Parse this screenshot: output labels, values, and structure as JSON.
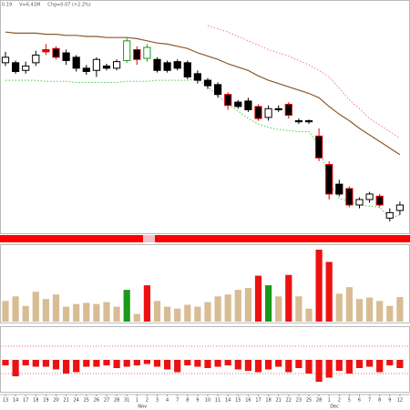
{
  "chart_data": [
    {
      "type": "candlestick",
      "header": [
        "0.19",
        "V=6.41M",
        "Chg=0.07 (+2.2%)"
      ],
      "x": [
        "13",
        "14",
        "17",
        "18",
        "19",
        "20",
        "21",
        "24",
        "25",
        "26",
        "27",
        "28",
        "31",
        "1",
        "2",
        "3",
        "4",
        "7",
        "8",
        "9",
        "10",
        "11",
        "14",
        "15",
        "16",
        "17",
        "18",
        "21",
        "22",
        "23",
        "25",
        "28",
        "1",
        "2",
        "5",
        "6",
        "7",
        "8",
        "9",
        "12"
      ],
      "months": [
        null,
        null,
        null,
        null,
        null,
        null,
        null,
        null,
        null,
        null,
        null,
        null,
        null,
        "Nov",
        null,
        null,
        null,
        null,
        null,
        null,
        null,
        null,
        null,
        null,
        null,
        null,
        null,
        null,
        null,
        null,
        null,
        null,
        "Dec",
        null,
        null,
        null,
        null,
        null,
        null,
        null
      ],
      "open": [
        4.35,
        4.35,
        4.28,
        4.35,
        4.45,
        4.48,
        4.44,
        4.4,
        4.3,
        4.28,
        4.32,
        4.3,
        4.37,
        4.47,
        4.39,
        4.38,
        4.35,
        4.36,
        4.35,
        4.25,
        4.19,
        4.15,
        4.06,
        3.99,
        4.0,
        3.95,
        3.85,
        3.93,
        3.97,
        3.82,
        3.82,
        3.68,
        3.42,
        3.24,
        3.2,
        3.05,
        3.1,
        3.13,
        2.93,
        3.0
      ],
      "high": [
        4.45,
        4.37,
        4.36,
        4.46,
        4.52,
        4.5,
        4.47,
        4.42,
        4.33,
        4.4,
        4.34,
        4.38,
        4.58,
        4.5,
        4.52,
        4.4,
        4.37,
        4.38,
        4.37,
        4.28,
        4.21,
        4.17,
        4.08,
        4.01,
        4.03,
        3.97,
        3.96,
        3.96,
        3.99,
        3.84,
        3.83,
        3.75,
        3.45,
        3.28,
        3.22,
        3.12,
        3.17,
        3.15,
        3.02,
        3.08
      ],
      "low": [
        4.32,
        4.25,
        4.25,
        4.32,
        4.42,
        4.38,
        4.33,
        4.27,
        4.24,
        4.22,
        4.28,
        4.28,
        4.35,
        4.33,
        4.36,
        4.26,
        4.26,
        4.28,
        4.2,
        4.16,
        4.11,
        4.03,
        3.92,
        3.93,
        3.9,
        3.82,
        3.82,
        3.9,
        3.84,
        3.79,
        3.79,
        3.45,
        3.1,
        3.13,
        3.03,
        3.02,
        3.07,
        3.03,
        2.9,
        2.96
      ],
      "close": [
        4.4,
        4.27,
        4.32,
        4.42,
        4.47,
        4.4,
        4.37,
        4.3,
        4.27,
        4.38,
        4.3,
        4.36,
        4.55,
        4.38,
        4.49,
        4.28,
        4.28,
        4.3,
        4.22,
        4.19,
        4.14,
        4.06,
        3.96,
        3.95,
        3.92,
        3.84,
        3.93,
        3.92,
        3.87,
        3.81,
        3.81,
        3.48,
        3.15,
        3.15,
        3.05,
        3.1,
        3.15,
        3.05,
        2.98,
        3.05
      ],
      "outline": [
        "#000000",
        "#000000",
        "#000000",
        "#000000",
        "#e00000",
        "#e00000",
        "#000000",
        "#000000",
        "#000000",
        "#000000",
        "#000000",
        "#000000",
        "#1a9a1a",
        "#e00000",
        "#1a9a1a",
        "#000000",
        "#000000",
        "#000000",
        "#000000",
        "#000000",
        "#000000",
        "#000000",
        "#e00000",
        "#000000",
        "#000000",
        "#e00000",
        "#000000",
        "#000000",
        "#e00000",
        "#000000",
        "#000000",
        "#e00000",
        "#e00000",
        "#000000",
        "#e00000",
        "#000000",
        "#000000",
        "#e00000",
        "#000000",
        "#000000"
      ],
      "up_color": "#ffffff",
      "down_color": "#000000",
      "ylim": [
        2.8,
        4.84
      ],
      "lines": [
        {
          "color": "#8b5a2b",
          "style": "solid",
          "values": [
            4.63,
            4.62,
            4.62,
            4.62,
            4.61,
            4.61,
            4.6,
            4.6,
            4.59,
            4.59,
            4.58,
            4.58,
            4.58,
            4.57,
            4.55,
            4.53,
            4.52,
            4.5,
            4.48,
            4.44,
            4.41,
            4.38,
            4.34,
            4.31,
            4.28,
            4.23,
            4.19,
            4.16,
            4.13,
            4.1,
            4.07,
            4.03,
            3.95,
            3.88,
            3.82,
            3.75,
            3.69,
            3.63,
            3.57,
            3.51
          ]
        },
        {
          "color": "#f08080",
          "style": "dotted",
          "values": [
            null,
            null,
            null,
            null,
            null,
            null,
            null,
            null,
            null,
            null,
            null,
            null,
            null,
            null,
            null,
            null,
            null,
            null,
            null,
            null,
            4.69,
            4.66,
            4.63,
            4.59,
            4.55,
            4.51,
            4.47,
            4.44,
            4.41,
            4.37,
            4.33,
            4.28,
            4.22,
            4.12,
            4.01,
            3.93,
            3.84,
            3.78,
            3.72,
            3.66
          ]
        },
        {
          "color": "#4cc94c",
          "style": "dotted",
          "values": [
            4.19,
            4.19,
            4.19,
            4.19,
            4.18,
            4.18,
            4.18,
            4.17,
            4.17,
            4.17,
            4.17,
            4.17,
            4.18,
            4.18,
            4.18,
            4.19,
            4.19,
            4.19,
            4.19,
            4.2,
            4.13,
            4.05,
            3.97,
            3.91,
            3.84,
            3.79,
            3.76,
            3.74,
            3.73,
            3.72,
            3.72,
            3.59,
            3.26,
            3.11,
            3.08,
            3.05,
            3.04,
            3.03,
            2.93,
            2.96
          ]
        }
      ]
    },
    {
      "type": "bar",
      "values": [
        5.4,
        6.6,
        4.1,
        7.8,
        5.9,
        7.1,
        3.9,
        4.6,
        4.9,
        4.6,
        5.1,
        3.9,
        8.3,
        2.0,
        9.5,
        5.4,
        3.9,
        3.4,
        4.4,
        3.9,
        5.1,
        6.6,
        7.1,
        8.3,
        8.8,
        12.0,
        9.5,
        6.6,
        12.2,
        6.6,
        3.4,
        18.8,
        15.6,
        7.3,
        9.0,
        5.9,
        6.3,
        5.4,
        4.1,
        6.41
      ],
      "colors": [
        "#d8bc94",
        "#d8bc94",
        "#d8bc94",
        "#d8bc94",
        "#d8bc94",
        "#d8bc94",
        "#d8bc94",
        "#d8bc94",
        "#d8bc94",
        "#d8bc94",
        "#d8bc94",
        "#d8bc94",
        "#1a9a1a",
        "#d8bc94",
        "#ee1111",
        "#d8bc94",
        "#d8bc94",
        "#d8bc94",
        "#d8bc94",
        "#d8bc94",
        "#d8bc94",
        "#d8bc94",
        "#d8bc94",
        "#d8bc94",
        "#d8bc94",
        "#ee1111",
        "#1a9a1a",
        "#d8bc94",
        "#ee1111",
        "#d8bc94",
        "#d8bc94",
        "#ee1111",
        "#ee1111",
        "#d8bc94",
        "#d8bc94",
        "#d8bc94",
        "#d8bc94",
        "#d8bc94",
        "#d8bc94",
        "#d8bc94"
      ],
      "ylim": [
        0,
        20
      ]
    },
    {
      "type": "bar",
      "values": [
        -0.4,
        -1.2,
        -0.4,
        -0.5,
        -0.5,
        -0.7,
        -1.0,
        -0.9,
        -0.5,
        -0.5,
        -0.4,
        -0.6,
        -0.5,
        -0.4,
        -0.3,
        -0.5,
        -0.7,
        -0.9,
        -0.4,
        -0.5,
        -0.6,
        -0.5,
        -0.4,
        -0.7,
        -0.8,
        -0.9,
        -0.7,
        -0.5,
        -0.9,
        -0.6,
        -1.0,
        -1.6,
        -1.3,
        -0.8,
        -1.0,
        -0.6,
        -0.5,
        -0.9,
        -0.4,
        -0.6
      ],
      "color": "#ee1111",
      "levels": [
        1,
        -1
      ],
      "ylim": [
        -2,
        2
      ]
    }
  ]
}
